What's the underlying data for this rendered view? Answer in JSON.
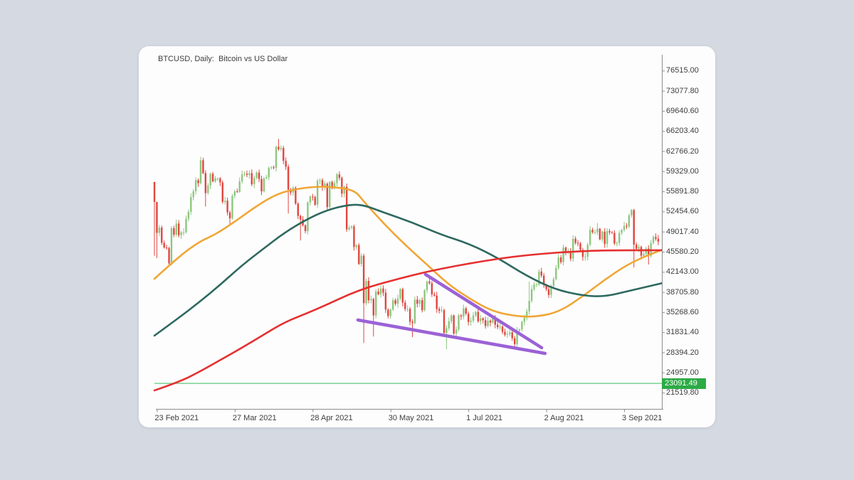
{
  "header": {
    "title": "BTCUSD, Daily:  Bitcoin vs US Dollar"
  },
  "colors": {
    "page_background": "#d4d9e2",
    "panel_background": "#fdfdfe",
    "axis": "#8c8c8c",
    "axis_label": "#3e3e3e",
    "candle_up": "#8dc77e",
    "candle_down": "#e0463f",
    "price_line_green": "#5fc87f",
    "price_tag_green": "#2cab45"
  },
  "chart_data": {
    "type": "candlestick",
    "symbol": "BTCUSD",
    "timeframe": "Daily",
    "description": "Bitcoin vs US Dollar",
    "y_axis": {
      "ticks": [
        "76515.00",
        "73077.80",
        "69640.60",
        "66203.40",
        "62766.20",
        "59329.00",
        "55891.80",
        "52454.60",
        "49017.40",
        "45580.20",
        "42143.00",
        "38705.80",
        "35268.60",
        "31831.40",
        "28394.20",
        "24957.00",
        "21519.80"
      ],
      "top_value": 76515.0,
      "step": 3437.2
    },
    "x_axis": {
      "ticks": [
        {
          "label": "23 Feb 2021",
          "day": 1
        },
        {
          "label": "27 Mar 2021",
          "day": 33
        },
        {
          "label": "28 Apr 2021",
          "day": 65
        },
        {
          "label": "30 May 2021",
          "day": 97
        },
        {
          "label": "1 Jul 2021",
          "day": 129
        },
        {
          "label": "2 Aug 2021",
          "day": 161
        },
        {
          "label": "3 Sep 2021",
          "day": 193
        }
      ]
    },
    "price_line": {
      "value": 23091.49,
      "label": "23091.49"
    },
    "candles": {
      "first_open": 57500,
      "closes": [
        54100,
        48800,
        49700,
        47100,
        46300,
        46200,
        43600,
        49600,
        48500,
        50400,
        48400,
        48900,
        48900,
        51200,
        52400,
        54900,
        55900,
        57800,
        57300,
        61200,
        59000,
        55600,
        56900,
        58900,
        57600,
        58100,
        58100,
        57400,
        54100,
        54300,
        52300,
        51300,
        55100,
        55900,
        55800,
        57600,
        58800,
        58900,
        58700,
        59000,
        57100,
        58200,
        59100,
        58000,
        55900,
        58100,
        58300,
        59900,
        60000,
        59900,
        63500,
        63100,
        63300,
        61100,
        60100,
        56200,
        55700,
        56500,
        53800,
        51700,
        51100,
        50100,
        49100,
        54000,
        55000,
        54900,
        53600,
        57700,
        57800,
        56600,
        57200,
        53200,
        57500,
        56400,
        57300,
        58800,
        58200,
        55500,
        56700,
        49400,
        49700,
        49900,
        46400,
        46700,
        43500,
        44900,
        36800,
        40600,
        37300,
        37500,
        34700,
        38800,
        38300,
        39300,
        38600,
        35700,
        34600,
        35700,
        37300,
        36700,
        37600,
        39200,
        36900,
        35800,
        35800,
        33600,
        33400,
        37400,
        36700,
        37300,
        35600,
        39000,
        40500,
        40200,
        38300,
        38100,
        35800,
        35500,
        35600,
        31700,
        32500,
        33700,
        34700,
        31600,
        32300,
        34700,
        34500,
        35900,
        35000,
        33600,
        33800,
        34700,
        35300,
        33700,
        34200,
        33900,
        32900,
        33800,
        33500,
        34200,
        33100,
        32700,
        32800,
        31900,
        31400,
        31500,
        31800,
        30800,
        29800,
        32100,
        32300,
        33600,
        34300,
        35400,
        37200,
        39200,
        40000,
        40000,
        42200,
        41500,
        39900,
        39200,
        38200,
        39700,
        40900,
        42800,
        44600,
        43800,
        46300,
        45600,
        45600,
        44400,
        47800,
        47100,
        47000,
        45900,
        44700,
        44700,
        46800,
        49300,
        48900,
        48900,
        49500,
        47700,
        49000,
        46900,
        49100,
        48900,
        48800,
        47000,
        47100,
        48800,
        49300,
        50000,
        49900,
        51800,
        52700,
        46800,
        46100,
        46400,
        44900,
        45200,
        46100,
        44900,
        47100,
        48100,
        47800,
        47300
      ],
      "wick_overrides": {
        "0": [
          57500,
          44900
        ],
        "1": [
          51400,
          44500
        ],
        "19": [
          61800,
          null
        ],
        "21": [
          null,
          53300
        ],
        "31": [
          null,
          50300
        ],
        "51": [
          64850,
          null
        ],
        "55": [
          null,
          52100
        ],
        "60": [
          null,
          47500
        ],
        "86": [
          null,
          30000
        ],
        "90": [
          null,
          31100
        ],
        "106": [
          null,
          31000
        ],
        "113": [
          41300,
          null
        ],
        "120": [
          null,
          28900
        ],
        "148": [
          null,
          29300
        ],
        "154": [
          40500,
          null
        ],
        "158": [
          42600,
          null
        ],
        "182": [
          50500,
          null
        ],
        "196": [
          52850,
          null
        ],
        "197": [
          52900,
          42900
        ],
        "203": [
          null,
          43400
        ]
      }
    },
    "moving_averages": [
      {
        "name": "fast-ma-orange",
        "color": "#f0a635",
        "points": [
          [
            0,
            40950
          ],
          [
            9.6,
            44600
          ],
          [
            18.4,
            47300
          ],
          [
            24.9,
            48500
          ],
          [
            33,
            50700
          ],
          [
            41.8,
            53350
          ],
          [
            50.6,
            55540
          ],
          [
            59.4,
            56390
          ],
          [
            68.1,
            56750
          ],
          [
            76.9,
            56510
          ],
          [
            82.7,
            55900
          ],
          [
            85.7,
            54300
          ],
          [
            94.4,
            50300
          ],
          [
            103.2,
            46670
          ],
          [
            112,
            43390
          ],
          [
            120.8,
            39990
          ],
          [
            129.5,
            37560
          ],
          [
            138.3,
            35500
          ],
          [
            147.1,
            34650
          ],
          [
            155.8,
            34400
          ],
          [
            166.1,
            35250
          ],
          [
            176.3,
            38050
          ],
          [
            185.1,
            40840
          ],
          [
            193.9,
            43270
          ],
          [
            201.2,
            44730
          ],
          [
            208.5,
            45900
          ]
        ]
      },
      {
        "name": "mid-ma-teal",
        "color": "#2e695e",
        "points": [
          [
            0,
            31250
          ],
          [
            9.6,
            34160
          ],
          [
            18.4,
            36960
          ],
          [
            27.2,
            39990
          ],
          [
            36,
            43270
          ],
          [
            44.7,
            46070
          ],
          [
            53.5,
            48860
          ],
          [
            62.3,
            51050
          ],
          [
            71.1,
            52750
          ],
          [
            79.8,
            53600
          ],
          [
            85.7,
            53600
          ],
          [
            94.4,
            52260
          ],
          [
            106.1,
            50560
          ],
          [
            117.8,
            48490
          ],
          [
            129.5,
            46920
          ],
          [
            141.2,
            44490
          ],
          [
            152.9,
            41450
          ],
          [
            164.6,
            39140
          ],
          [
            176.3,
            38050
          ],
          [
            185.1,
            37930
          ],
          [
            193.9,
            38780
          ],
          [
            208.5,
            40200
          ]
        ]
      },
      {
        "name": "slow-ma-red",
        "color": "#e53030",
        "points": [
          [
            0,
            21890
          ],
          [
            10.2,
            23350
          ],
          [
            18.4,
            25050
          ],
          [
            27.2,
            27120
          ],
          [
            36,
            29180
          ],
          [
            44.7,
            31370
          ],
          [
            53.5,
            33550
          ],
          [
            62.3,
            35010
          ],
          [
            71.1,
            36590
          ],
          [
            79.8,
            38290
          ],
          [
            88.6,
            39630
          ],
          [
            100.3,
            40960
          ],
          [
            112,
            42180
          ],
          [
            123.7,
            43150
          ],
          [
            135.4,
            44000
          ],
          [
            147.1,
            44730
          ],
          [
            158.8,
            45220
          ],
          [
            170.5,
            45580
          ],
          [
            185.1,
            45820
          ],
          [
            208.5,
            45830
          ]
        ]
      }
    ],
    "trendlines": [
      {
        "name": "wedge-upper",
        "color": "#9b62d6",
        "from": [
          111.4,
          41700
        ],
        "to": [
          159.1,
          29180
        ]
      },
      {
        "name": "wedge-lower",
        "color": "#9b62d6",
        "from": [
          83.6,
          33920
        ],
        "to": [
          160.5,
          28210
        ]
      }
    ]
  }
}
